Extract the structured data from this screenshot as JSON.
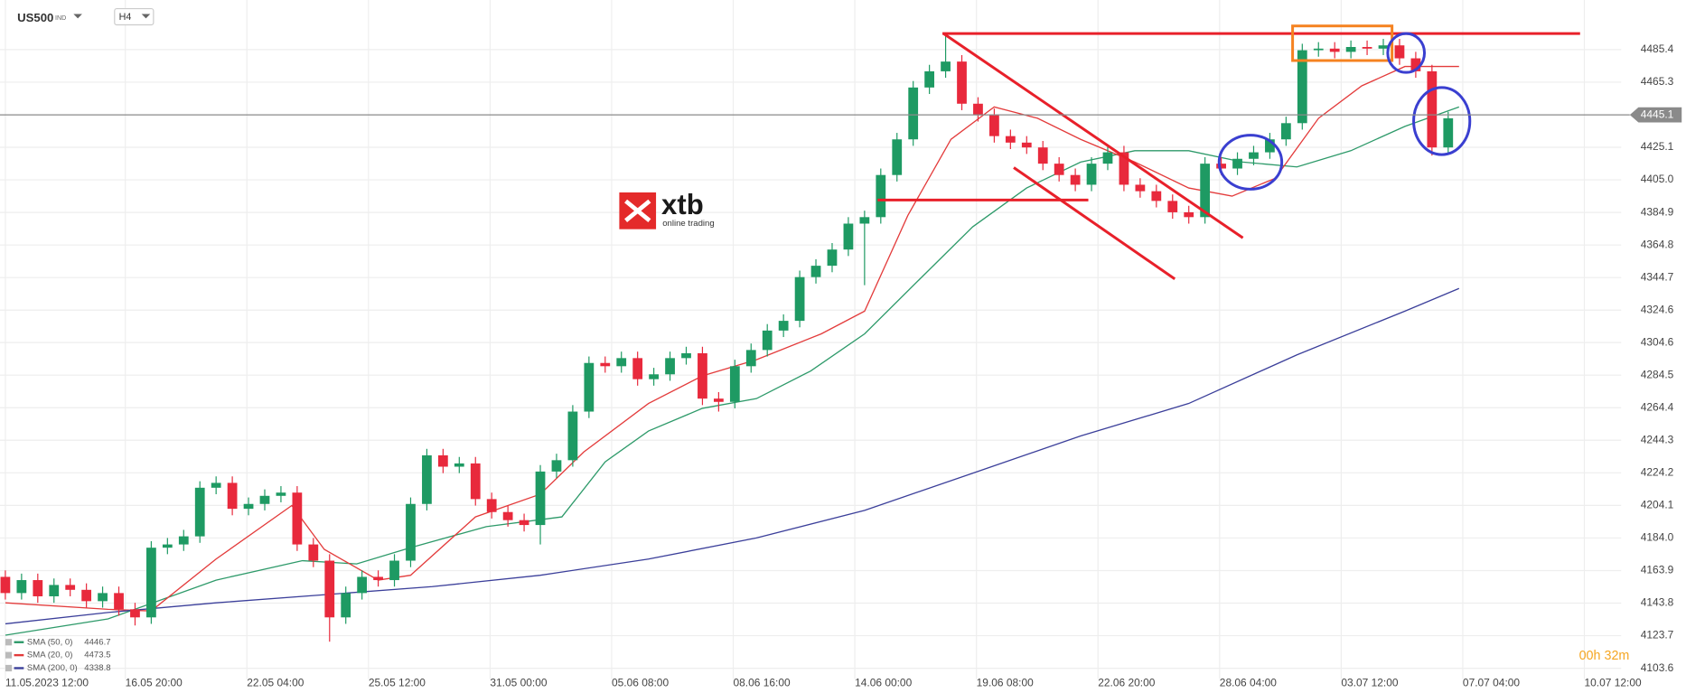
{
  "chart_data": {
    "type": "candlestick",
    "symbol": "US500",
    "symbol_type": "IND",
    "timeframe": "H4",
    "logo": "xtb",
    "logo_subtitle": "online trading",
    "countdown": "00h 32m",
    "last_price": 4445.1,
    "up_color": "#1e9a63",
    "down_color": "#e8293c",
    "grid": true,
    "xlim": [
      -0.33,
      99.67
    ],
    "ylim": [
      4097,
      4516
    ],
    "xticks": [
      {
        "value": 0,
        "label": "11.05.2023 12:00"
      },
      {
        "value": 7.4,
        "label": "16.05 20:00"
      },
      {
        "value": 14.9,
        "label": "22.05 04:00"
      },
      {
        "value": 22.4,
        "label": "25.05 12:00"
      },
      {
        "value": 29.9,
        "label": "31.05 00:00"
      },
      {
        "value": 37.4,
        "label": "05.06 08:00"
      },
      {
        "value": 44.9,
        "label": "08.06 16:00"
      },
      {
        "value": 52.4,
        "label": "14.06 00:00"
      },
      {
        "value": 59.9,
        "label": "19.06 08:00"
      },
      {
        "value": 67.4,
        "label": "22.06 20:00"
      },
      {
        "value": 74.9,
        "label": "28.06 04:00"
      },
      {
        "value": 82.4,
        "label": "03.07 12:00"
      },
      {
        "value": 89.9,
        "label": "07.07 04:00"
      },
      {
        "value": 97.4,
        "label": "10.07 12:00"
      }
    ],
    "yticks": [
      4103.6,
      4123.7,
      4143.8,
      4163.9,
      {
        "value": 4184,
        "label": "4184.0"
      },
      4204.1,
      4224.2,
      4244.3,
      4264.4,
      4284.5,
      4304.6,
      4324.6,
      4344.7,
      4364.8,
      4384.9,
      {
        "value": 4405,
        "label": "4405.0"
      },
      4425.1,
      4465.3,
      4485.4
    ],
    "open": [
      4160,
      4150,
      4158,
      4148,
      4155,
      4152,
      4145,
      4150,
      4140,
      4135,
      4178,
      4180,
      4185,
      4215,
      4218,
      4202,
      4205,
      4210,
      4212,
      4180,
      4170,
      4135,
      4150,
      4160,
      4158,
      4170,
      4205,
      4235,
      4228,
      4230,
      4208,
      4200,
      4195,
      4192,
      4225,
      4232,
      4262,
      4292,
      4290,
      4295,
      4282,
      4285,
      4295,
      4298,
      4270,
      4268,
      4290,
      4300,
      4312,
      4318,
      4345,
      4352,
      4362,
      4378,
      4382,
      4408,
      4430,
      4462,
      4472,
      4478,
      4452,
      4445,
      4432,
      4428,
      4425,
      4415,
      4408,
      4402,
      4415,
      4422,
      4402,
      4398,
      4392,
      4385,
      4382,
      4415,
      4412,
      4418,
      4422,
      4430,
      4440,
      4485,
      4486,
      4484,
      4487,
      4486,
      4488,
      4480,
      4472,
      4425
    ],
    "high": [
      4164,
      4162,
      4162,
      4159,
      4159,
      4156,
      4154,
      4154,
      4144,
      4182,
      4184,
      4189,
      4219,
      4222,
      4222,
      4209,
      4214,
      4216,
      4216,
      4184,
      4174,
      4154,
      4164,
      4164,
      4174,
      4209,
      4239,
      4239,
      4234,
      4234,
      4212,
      4204,
      4199,
      4229,
      4236,
      4266,
      4296,
      4296,
      4299,
      4299,
      4289,
      4299,
      4302,
      4302,
      4274,
      4294,
      4304,
      4316,
      4322,
      4349,
      4356,
      4366,
      4382,
      4386,
      4412,
      4434,
      4466,
      4476,
      4495,
      4482,
      4456,
      4449,
      4436,
      4432,
      4429,
      4419,
      4412,
      4419,
      4426,
      4426,
      4406,
      4402,
      4396,
      4389,
      4419,
      4419,
      4422,
      4426,
      4434,
      4444,
      4489,
      4490,
      4490,
      4491,
      4491,
      4492,
      4492,
      4484,
      4476,
      4447
    ],
    "low": [
      4146,
      4146,
      4144,
      4144,
      4148,
      4141,
      4141,
      4136,
      4130,
      4131,
      4174,
      4176,
      4181,
      4211,
      4198,
      4198,
      4201,
      4206,
      4176,
      4166,
      4120,
      4131,
      4146,
      4154,
      4154,
      4166,
      4201,
      4224,
      4224,
      4204,
      4196,
      4191,
      4188,
      4180,
      4221,
      4228,
      4258,
      4286,
      4286,
      4278,
      4278,
      4281,
      4291,
      4266,
      4262,
      4264,
      4286,
      4296,
      4308,
      4314,
      4341,
      4348,
      4358,
      4340,
      4378,
      4404,
      4426,
      4458,
      4468,
      4448,
      4441,
      4428,
      4424,
      4421,
      4411,
      4404,
      4398,
      4398,
      4411,
      4398,
      4394,
      4388,
      4381,
      4378,
      4378,
      4408,
      4408,
      4414,
      4418,
      4426,
      4436,
      4481,
      4480,
      4480,
      4482,
      4482,
      4476,
      4468,
      4420,
      4421
    ],
    "close": [
      4150,
      4158,
      4148,
      4155,
      4152,
      4145,
      4150,
      4140,
      4135,
      4178,
      4180,
      4185,
      4215,
      4218,
      4202,
      4205,
      4210,
      4212,
      4180,
      4170,
      4135,
      4150,
      4160,
      4158,
      4170,
      4205,
      4235,
      4228,
      4230,
      4208,
      4200,
      4195,
      4192,
      4225,
      4232,
      4262,
      4292,
      4290,
      4295,
      4282,
      4285,
      4295,
      4298,
      4270,
      4268,
      4290,
      4300,
      4312,
      4318,
      4345,
      4352,
      4362,
      4378,
      4382,
      4408,
      4430,
      4462,
      4472,
      4478,
      4452,
      4445,
      4432,
      4428,
      4425,
      4415,
      4408,
      4402,
      4415,
      4422,
      4402,
      4398,
      4392,
      4385,
      4382,
      4415,
      4412,
      4418,
      4422,
      4430,
      4440,
      4485,
      4486,
      4484,
      4487,
      4486,
      4488,
      4480,
      4472,
      4425,
      4443
    ],
    "series": [
      {
        "name": "SMA (50, 0)",
        "color": "#2e9a6a",
        "last_value": 4446.7,
        "x": [
          0,
          6.33,
          13,
          18.33,
          21.67,
          25,
          29.67,
          34.33,
          37,
          39.67,
          43,
          46.33,
          49.67,
          53,
          56.33,
          59.67,
          63,
          66.33,
          69.67,
          73,
          76.33,
          79.67,
          83,
          86.33,
          89.67
        ],
        "values": [
          4124,
          4134,
          4158,
          4170,
          4168,
          4178,
          4191,
          4197,
          4231,
          4250,
          4264,
          4270,
          4287,
          4310,
          4343,
          4376,
          4400,
          4416,
          4423,
          4423,
          4416,
          4413,
          4423,
          4438,
          4450
        ]
      },
      {
        "name": "SMA (20, 0)",
        "color": "#e33b3b",
        "last_value": 4473.5,
        "x": [
          0,
          6.33,
          9,
          13,
          17.67,
          19.67,
          23,
          25,
          29,
          33,
          35.67,
          39.67,
          43,
          46.33,
          50.33,
          53,
          55.67,
          58.33,
          61,
          63.67,
          66.33,
          69.67,
          73,
          75.67,
          78.33,
          81,
          83.67,
          86.33,
          89.67
        ],
        "values": [
          4144,
          4140,
          4139,
          4171,
          4204,
          4177,
          4158,
          4161,
          4197,
          4211,
          4237,
          4267,
          4284,
          4294,
          4310,
          4324,
          4383,
          4430,
          4450,
          4443,
          4430,
          4416,
          4400,
          4395,
          4406,
          4443,
          4463,
          4475,
          4475
        ]
      },
      {
        "name": "SMA (200, 0)",
        "color": "#3b3f9a",
        "last_value": 4338.8,
        "x": [
          0,
          6.33,
          13,
          19.67,
          26.33,
          33,
          39.67,
          46.33,
          53,
          59.67,
          66.33,
          73,
          79.67,
          86.33,
          89.67
        ],
        "values": [
          4131,
          4138,
          4144,
          4149,
          4154,
          4161,
          4171,
          4184,
          4201,
          4224,
          4247,
          4267,
          4297,
          4324,
          4338
        ]
      }
    ]
  }
}
